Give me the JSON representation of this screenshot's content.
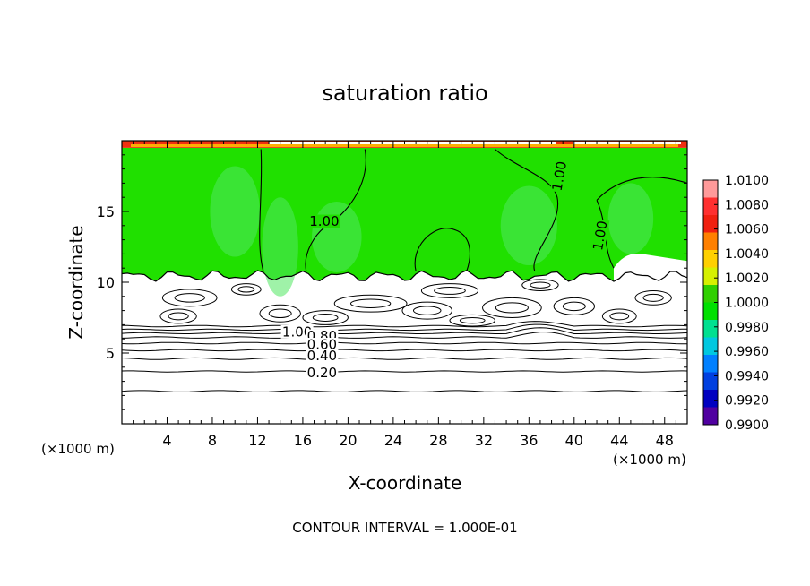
{
  "chart_data": {
    "type": "contour",
    "title": "saturation ratio",
    "xlabel": "X-coordinate",
    "ylabel": "Z-coordinate",
    "x_unit": "(×1000 m)",
    "y_unit": "(×1000 m)",
    "xlim": [
      0,
      50
    ],
    "ylim": [
      0,
      20
    ],
    "x_ticks": [
      4,
      8,
      12,
      16,
      20,
      24,
      28,
      32,
      36,
      40,
      44,
      48
    ],
    "y_ticks": [
      5,
      10,
      15
    ],
    "footer": "CONTOUR INTERVAL = 1.000E-01",
    "contour_interval": 0.1,
    "contour_labels": [
      {
        "text": "1.00",
        "x": 17.9,
        "y": 14.3
      },
      {
        "text": "1.00",
        "x": 38.7,
        "y": 17.5
      },
      {
        "text": "1.00",
        "x": 42.3,
        "y": 13.3
      },
      {
        "text": "1.00",
        "x": 15.5,
        "y": 6.5
      },
      {
        "text": "0.80",
        "x": 17.7,
        "y": 6.2
      },
      {
        "text": "0.60",
        "x": 17.7,
        "y": 5.6
      },
      {
        "text": "0.40",
        "x": 17.7,
        "y": 4.8
      },
      {
        "text": "0.20",
        "x": 17.7,
        "y": 3.6
      }
    ],
    "colorbar": {
      "labels": [
        "1.0100",
        "1.0080",
        "1.0060",
        "1.0040",
        "1.0020",
        "1.0000",
        "0.9980",
        "0.9960",
        "0.9940",
        "0.9920",
        "0.9900"
      ],
      "colors": [
        "#ff9a9a",
        "#ff3030",
        "#f02010",
        "#ff8000",
        "#ffd000",
        "#d6f000",
        "#30d000",
        "#00e000",
        "#00e090",
        "#00c8e0",
        "#0080ff",
        "#0040e0",
        "#0000c0",
        "#5000a0"
      ]
    },
    "regions": {
      "saturated_top": 19.5,
      "saturated_bottom": 10.8,
      "field_color": "#20e000"
    }
  }
}
